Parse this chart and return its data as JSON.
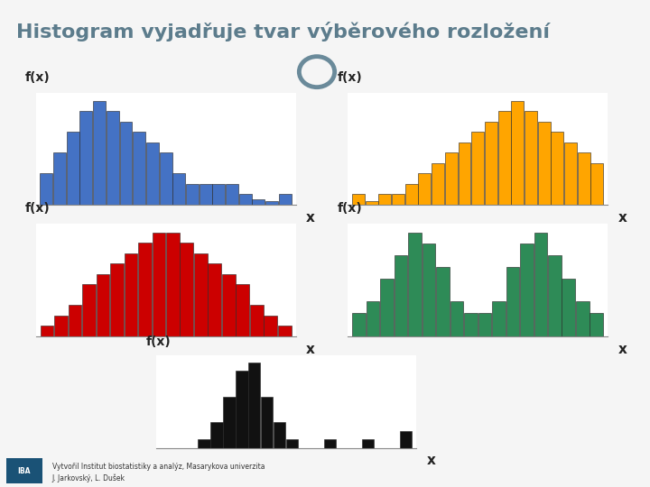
{
  "title": "Histogram vyjadřuje tvar výběrového rozložení",
  "title_color": "#5c7c8c",
  "bg_color": "#f5f5f5",
  "panel_bg": "#ffffff",
  "footer_bg": "#d8e4ed",
  "blue_bars": [
    3,
    5,
    7,
    9,
    10,
    9,
    8,
    7,
    6,
    5,
    3,
    2,
    2,
    2,
    2,
    1,
    0.5,
    0.3,
    1
  ],
  "orange_bars": [
    1,
    0.3,
    1,
    1,
    2,
    3,
    4,
    5,
    6,
    7,
    8,
    9,
    10,
    9,
    8,
    7,
    6,
    5,
    4
  ],
  "red_bars": [
    1,
    2,
    3,
    5,
    6,
    7,
    8,
    9,
    10,
    10,
    9,
    8,
    7,
    6,
    5,
    3,
    2,
    1
  ],
  "green_bars": [
    2,
    3,
    5,
    7,
    9,
    8,
    6,
    3,
    2,
    2,
    3,
    6,
    8,
    9,
    7,
    5,
    3,
    2
  ],
  "black_bars": [
    0,
    0,
    0,
    1,
    3,
    6,
    9,
    10,
    6,
    3,
    1,
    0,
    0,
    1,
    0,
    0,
    1,
    0,
    0,
    2
  ],
  "blue_color": "#4472c4",
  "orange_color": "#ffa500",
  "red_color": "#cc0000",
  "green_color": "#2e8b57",
  "black_color": "#111111",
  "footer_text1": "Vytvořil Institut biostatistiky a analýz, Masarykova univerzita",
  "footer_text2": "J. Jarkovský, L. Dušek",
  "title_fontsize": 16,
  "label_fontsize": 10,
  "axis_label_fontsize": 11
}
